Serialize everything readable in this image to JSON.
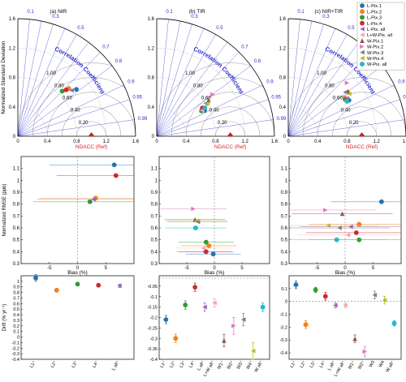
{
  "colors": {
    "L-Pix.1": "#1f77b4",
    "L-Pix.2": "#ff7f0e",
    "L-Pix.3": "#2ca02c",
    "L-Pix.4": "#d62728",
    "L-Pix. all": "#9467bd",
    "L+W-Pix. all": "#f7a1b0",
    "W-Pix.1": "#8c564b",
    "W-Pix.2": "#e377c2",
    "W-Pix.3": "#7f7f7f",
    "W-Pix.4": "#bcbd22",
    "W-Pix. all": "#17becf",
    "ref": "#e31a1c",
    "arcs": "#2b2bd0",
    "cc_label": "#2b2bd0"
  },
  "chart_data": [
    {
      "type": "scatter",
      "subtype": "taylor-diagram",
      "title": "(a) NIR",
      "ylabel": "Normalized Standard Deviation",
      "xlabel": "NDACC (Ref)",
      "ticks": [
        "0",
        "0.4",
        "0.8",
        "1.2",
        "1.6"
      ],
      "rms_labels": [
        "1.00",
        "0.80",
        "0.60",
        "0.40",
        "0.20"
      ],
      "corr_title": "Correlation Coefficient",
      "corr_ticks": [
        "0.1",
        "0.3",
        "0.5",
        "0.7",
        "0.8",
        "0.9",
        "0.95",
        "0.99"
      ],
      "points": [
        {
          "name": "L-Pix.1",
          "std": 1.02,
          "corr": 0.78,
          "marker": "o"
        },
        {
          "name": "L-Pix.2",
          "std": 0.95,
          "corr": 0.73,
          "marker": "o"
        },
        {
          "name": "L-Pix.3",
          "std": 0.86,
          "corr": 0.7,
          "marker": "o"
        },
        {
          "name": "L-Pix.4",
          "std": 0.91,
          "corr": 0.72,
          "marker": "o"
        },
        {
          "name": "L-Pix. all",
          "std": 0.96,
          "corr": 0.76,
          "marker": "<"
        }
      ],
      "ref": {
        "std": 1.0,
        "corr": 1.0
      }
    },
    {
      "type": "scatter",
      "subtype": "taylor-diagram",
      "title": "(b) TIR",
      "xlabel": "NDACC (Ref)",
      "ticks": [
        "0",
        "0.4",
        "0.8",
        "1.2",
        "1.6"
      ],
      "rms_labels": [
        "1.00",
        "0.80",
        "0.60",
        "0.40",
        "0.20"
      ],
      "corr_title": "Correlation Coefficient",
      "corr_ticks": [
        "0.1",
        "0.3",
        "0.5",
        "0.7",
        "0.8",
        "0.9",
        "0.95",
        "0.99"
      ],
      "points": [
        {
          "name": "L-Pix.1",
          "std": 0.74,
          "corr": 0.88,
          "marker": "o"
        },
        {
          "name": "L-Pix.2",
          "std": 0.72,
          "corr": 0.86,
          "marker": "o"
        },
        {
          "name": "L-Pix.3",
          "std": 0.7,
          "corr": 0.87,
          "marker": "o"
        },
        {
          "name": "L-Pix.4",
          "std": 0.73,
          "corr": 0.85,
          "marker": "o"
        },
        {
          "name": "L-Pix. all",
          "std": 0.72,
          "corr": 0.86,
          "marker": "<"
        },
        {
          "name": "L+W-Pix. all",
          "std": 0.71,
          "corr": 0.87,
          "marker": "<"
        },
        {
          "name": "W-Pix.1",
          "std": 0.86,
          "corr": 0.82,
          "marker": "^"
        },
        {
          "name": "W-Pix.2",
          "std": 0.95,
          "corr": 0.8,
          "marker": ">"
        },
        {
          "name": "W-Pix.3",
          "std": 0.8,
          "corr": 0.83,
          "marker": "<"
        },
        {
          "name": "W-Pix.4",
          "std": 0.82,
          "corr": 0.84,
          "marker": "<"
        },
        {
          "name": "W-Pix. all",
          "std": 0.76,
          "corr": 0.86,
          "marker": "o"
        }
      ],
      "ref": {
        "std": 1.0,
        "corr": 1.0
      }
    },
    {
      "type": "scatter",
      "subtype": "taylor-diagram",
      "title": "(c) NIR+TIR",
      "xlabel": "NDACC (Ref)",
      "ticks": [
        "0",
        "0.4",
        "0.8",
        "1.2",
        "1.6"
      ],
      "rms_labels": [
        "1.00",
        "0.80",
        "0.60",
        "0.40",
        "0.20"
      ],
      "corr_title": "Correlation Coefficient",
      "corr_ticks": [
        "0.1",
        "0.3",
        "0.5",
        "0.7",
        "0.8",
        "0.9",
        "0.95",
        "0.99"
      ],
      "points": [
        {
          "name": "L-Pix.1",
          "std": 0.96,
          "corr": 0.86,
          "marker": "o"
        },
        {
          "name": "L-Pix.2",
          "std": 0.93,
          "corr": 0.83,
          "marker": "o"
        },
        {
          "name": "L-Pix.3",
          "std": 0.92,
          "corr": 0.84,
          "marker": "o"
        },
        {
          "name": "L-Pix.4",
          "std": 0.94,
          "corr": 0.85,
          "marker": "o"
        },
        {
          "name": "L-Pix. all",
          "std": 0.95,
          "corr": 0.84,
          "marker": "<"
        },
        {
          "name": "L+W-Pix. all",
          "std": 0.92,
          "corr": 0.85,
          "marker": "<"
        },
        {
          "name": "W-Pix.1",
          "std": 1.02,
          "corr": 0.8,
          "marker": "^"
        },
        {
          "name": "W-Pix.2",
          "std": 1.08,
          "corr": 0.74,
          "marker": ">"
        },
        {
          "name": "W-Pix.3",
          "std": 0.98,
          "corr": 0.79,
          "marker": "<"
        },
        {
          "name": "W-Pix.4",
          "std": 1.01,
          "corr": 0.82,
          "marker": "<"
        },
        {
          "name": "W-Pix. all",
          "std": 0.93,
          "corr": 0.86,
          "marker": "o"
        }
      ],
      "ref": {
        "std": 1.0,
        "corr": 1.0
      }
    },
    {
      "type": "scatter",
      "subtype": "bias-nrmse",
      "xlabel": "Bias (%)",
      "ylabel": "Normalized RMSE (ppb)",
      "xlim": [
        -10,
        10
      ],
      "ylim": [
        0.3,
        1.2
      ],
      "xticks": [
        -5,
        0,
        5
      ],
      "yticks": [
        0.3,
        0.4,
        0.5,
        0.6,
        0.7,
        0.8,
        0.9,
        1.0,
        1.1
      ],
      "points": [
        {
          "name": "L-Pix.1",
          "x": 6.5,
          "y": 1.13,
          "xerr": 11.5,
          "marker": "o"
        },
        {
          "name": "L-Pix.4",
          "x": 6.8,
          "y": 1.04,
          "xerr": 10.5,
          "marker": "o"
        },
        {
          "name": "L-Pix.2",
          "x": 3.2,
          "y": 0.85,
          "xerr": 10.0,
          "marker": "o"
        },
        {
          "name": "L-Pix. all",
          "x": 2.8,
          "y": 0.84,
          "xerr": 10.0,
          "marker": "<"
        },
        {
          "name": "L-Pix.3",
          "x": 2.2,
          "y": 0.82,
          "xerr": 10.0,
          "marker": "o"
        }
      ]
    },
    {
      "type": "scatter",
      "subtype": "bias-nrmse",
      "xlabel": "Bias (%)",
      "xlim": [
        -10,
        10
      ],
      "ylim": [
        0.3,
        1.2
      ],
      "xticks": [
        -5,
        0,
        5
      ],
      "yticks": [
        0.3,
        0.4,
        0.5,
        0.6,
        0.7,
        0.8,
        0.9,
        1.0,
        1.1
      ],
      "points": [
        {
          "name": "W-Pix.2",
          "x": -3.8,
          "y": 0.76,
          "xerr": 6.0,
          "marker": ">"
        },
        {
          "name": "W-Pix.1",
          "x": -3.5,
          "y": 0.67,
          "xerr": 5.5,
          "marker": "^"
        },
        {
          "name": "W-Pix.4",
          "x": -3.2,
          "y": 0.66,
          "xerr": 5.5,
          "marker": "<"
        },
        {
          "name": "W-Pix.3",
          "x": -3.0,
          "y": 0.65,
          "xerr": 5.5,
          "marker": "<"
        },
        {
          "name": "W-Pix. all",
          "x": -3.4,
          "y": 0.6,
          "xerr": 5.5,
          "marker": "o"
        },
        {
          "name": "L-Pix.3",
          "x": -1.5,
          "y": 0.48,
          "xerr": 5.0,
          "marker": "o"
        },
        {
          "name": "L-Pix.2",
          "x": -1.0,
          "y": 0.45,
          "xerr": 5.0,
          "marker": "o"
        },
        {
          "name": "L+W-Pix. all",
          "x": -2.0,
          "y": 0.43,
          "xerr": 5.0,
          "marker": "<"
        },
        {
          "name": "L-Pix. all",
          "x": -1.8,
          "y": 0.4,
          "xerr": 5.0,
          "marker": "<"
        },
        {
          "name": "L-Pix.4",
          "x": -1.5,
          "y": 0.4,
          "xerr": 5.0,
          "marker": "o"
        },
        {
          "name": "L-Pix.1",
          "x": -0.2,
          "y": 0.38,
          "xerr": 5.0,
          "marker": "o"
        }
      ]
    },
    {
      "type": "scatter",
      "subtype": "bias-nrmse",
      "xlabel": "Bias (%)",
      "xlim": [
        -10,
        10
      ],
      "ylim": [
        0.3,
        1.2
      ],
      "xticks": [
        -5,
        0,
        5
      ],
      "yticks": [
        0.3,
        0.4,
        0.5,
        0.6,
        0.7,
        0.8,
        0.9,
        1.0,
        1.1
      ],
      "points": [
        {
          "name": "L-Pix.1",
          "x": 6.5,
          "y": 0.82,
          "xerr": 9.0,
          "marker": "o"
        },
        {
          "name": "W-Pix.2",
          "x": -3.5,
          "y": 0.75,
          "xerr": 9.0,
          "marker": ">"
        },
        {
          "name": "W-Pix.1",
          "x": -0.5,
          "y": 0.72,
          "xerr": 9.0,
          "marker": "^"
        },
        {
          "name": "L-Pix.2",
          "x": 2.5,
          "y": 0.63,
          "xerr": 9.0,
          "marker": "o"
        },
        {
          "name": "W-Pix.4",
          "x": -3.0,
          "y": 0.62,
          "xerr": 9.0,
          "marker": "<"
        },
        {
          "name": "L-Pix. all",
          "x": 1.0,
          "y": 0.61,
          "xerr": 9.0,
          "marker": "<"
        },
        {
          "name": "W-Pix.3",
          "x": -1.0,
          "y": 0.6,
          "xerr": 9.0,
          "marker": "<"
        },
        {
          "name": "L-Pix.4",
          "x": 2.0,
          "y": 0.56,
          "xerr": 9.0,
          "marker": "o"
        },
        {
          "name": "L+W-Pix. all",
          "x": 0.5,
          "y": 0.54,
          "xerr": 9.0,
          "marker": "<"
        },
        {
          "name": "L-Pix.3",
          "x": 2.5,
          "y": 0.5,
          "xerr": 9.0,
          "marker": "o"
        },
        {
          "name": "W-Pix. all",
          "x": -1.5,
          "y": 0.5,
          "xerr": 9.0,
          "marker": "o"
        }
      ]
    },
    {
      "type": "scatter",
      "subtype": "drift",
      "ylabel": "Drift (% yr⁻¹)",
      "ylim": [
        -0.4,
        1.1
      ],
      "yticks": [
        -0.4,
        -0.3,
        -0.2,
        -0.1,
        0,
        0.1,
        0.2,
        0.3,
        0.4,
        0.5,
        0.6,
        0.7,
        0.8,
        0.9,
        1
      ],
      "categories": [
        "L1⁺",
        "L2⁺",
        "L3⁺",
        "L4⁺",
        "L all⁺"
      ],
      "points": [
        {
          "name": "L-Pix.1",
          "y": 1.06,
          "err": 0.06,
          "marker": "o"
        },
        {
          "name": "L-Pix.2",
          "y": 0.84,
          "err": 0.03,
          "marker": "o"
        },
        {
          "name": "L-Pix.3",
          "y": 0.95,
          "err": 0.03,
          "marker": "o"
        },
        {
          "name": "L-Pix.4",
          "y": 0.93,
          "err": 0.03,
          "marker": "o"
        },
        {
          "name": "L-Pix. all",
          "y": 0.92,
          "err": 0.03,
          "marker": "<"
        }
      ]
    },
    {
      "type": "scatter",
      "subtype": "drift",
      "ylim": [
        -0.4,
        0
      ],
      "yticks": [
        -0.4,
        -0.35,
        -0.3,
        -0.25,
        -0.2,
        -0.15,
        -0.1,
        -0.05
      ],
      "categories": [
        "L1⁺",
        "L2⁺",
        "L3⁺",
        "L4⁺",
        "L all⁺",
        "L+W all⁺",
        "W1⁺",
        "W2⁺",
        "W3⁺",
        "W4⁺",
        "W all⁺"
      ],
      "points": [
        {
          "name": "L-Pix.1",
          "y": -0.21,
          "err": 0.02,
          "marker": "o"
        },
        {
          "name": "L-Pix.2",
          "y": -0.3,
          "err": 0.02,
          "marker": "o"
        },
        {
          "name": "L-Pix.3",
          "y": -0.14,
          "err": 0.02,
          "marker": "o"
        },
        {
          "name": "L-Pix.4",
          "y": -0.055,
          "err": 0.02,
          "marker": "o"
        },
        {
          "name": "L-Pix. all",
          "y": -0.15,
          "err": 0.02,
          "marker": "<"
        },
        {
          "name": "L+W-Pix. all",
          "y": -0.13,
          "err": 0.02,
          "marker": "<"
        },
        {
          "name": "W-Pix.1",
          "y": -0.31,
          "err": 0.03,
          "marker": "^"
        },
        {
          "name": "W-Pix.2",
          "y": -0.24,
          "err": 0.04,
          "marker": ">"
        },
        {
          "name": "W-Pix.3",
          "y": -0.21,
          "err": 0.03,
          "marker": "<"
        },
        {
          "name": "W-Pix.4",
          "y": -0.36,
          "err": 0.04,
          "marker": "<"
        },
        {
          "name": "W-Pix. all",
          "y": -0.15,
          "err": 0.02,
          "marker": "o"
        }
      ]
    },
    {
      "type": "scatter",
      "subtype": "drift",
      "ylim": [
        -0.45,
        0.2
      ],
      "yticks": [
        -0.4,
        -0.3,
        -0.2,
        -0.1,
        0,
        0.1
      ],
      "categories": [
        "L1⁺",
        "L2⁺",
        "L3⁺",
        "L4⁺",
        "L all⁺",
        "L+W all⁺",
        "W1⁺",
        "W2⁺",
        "W3",
        "W4",
        "W all⁺"
      ],
      "points": [
        {
          "name": "L-Pix.1",
          "y": 0.13,
          "err": 0.03,
          "marker": "o"
        },
        {
          "name": "L-Pix.2",
          "y": -0.18,
          "err": 0.03,
          "marker": "o"
        },
        {
          "name": "L-Pix.3",
          "y": 0.09,
          "err": 0.02,
          "marker": "o"
        },
        {
          "name": "L-Pix.4",
          "y": 0.04,
          "err": 0.03,
          "marker": "o"
        },
        {
          "name": "L-Pix. all",
          "y": -0.03,
          "err": 0.02,
          "marker": "<"
        },
        {
          "name": "L+W-Pix. all",
          "y": -0.03,
          "err": 0.02,
          "marker": "<"
        },
        {
          "name": "W-Pix.1",
          "y": -0.29,
          "err": 0.03,
          "marker": "^"
        },
        {
          "name": "W-Pix.2",
          "y": -0.39,
          "err": 0.04,
          "marker": ">"
        },
        {
          "name": "W-Pix.3",
          "y": 0.05,
          "err": 0.03,
          "marker": "<"
        },
        {
          "name": "W-Pix.4",
          "y": 0.01,
          "err": 0.03,
          "marker": "<"
        },
        {
          "name": "W-Pix. all",
          "y": -0.17,
          "err": 0.02,
          "marker": "o"
        }
      ]
    }
  ],
  "legend": [
    {
      "name": "L-Pix.1",
      "marker": "o"
    },
    {
      "name": "L-Pix.2",
      "marker": "o"
    },
    {
      "name": "L-Pix.3",
      "marker": "o"
    },
    {
      "name": "L-Pix.4",
      "marker": "o"
    },
    {
      "name": "L-Pix. all",
      "marker": "<"
    },
    {
      "name": "L+W-Pix. all",
      "marker": "<"
    },
    {
      "name": "W-Pix.1",
      "marker": "^"
    },
    {
      "name": "W-Pix.2",
      "marker": ">"
    },
    {
      "name": "W-Pix.3",
      "marker": "<"
    },
    {
      "name": "W-Pix.4",
      "marker": "<"
    },
    {
      "name": "W-Pix. all",
      "marker": "o"
    }
  ]
}
